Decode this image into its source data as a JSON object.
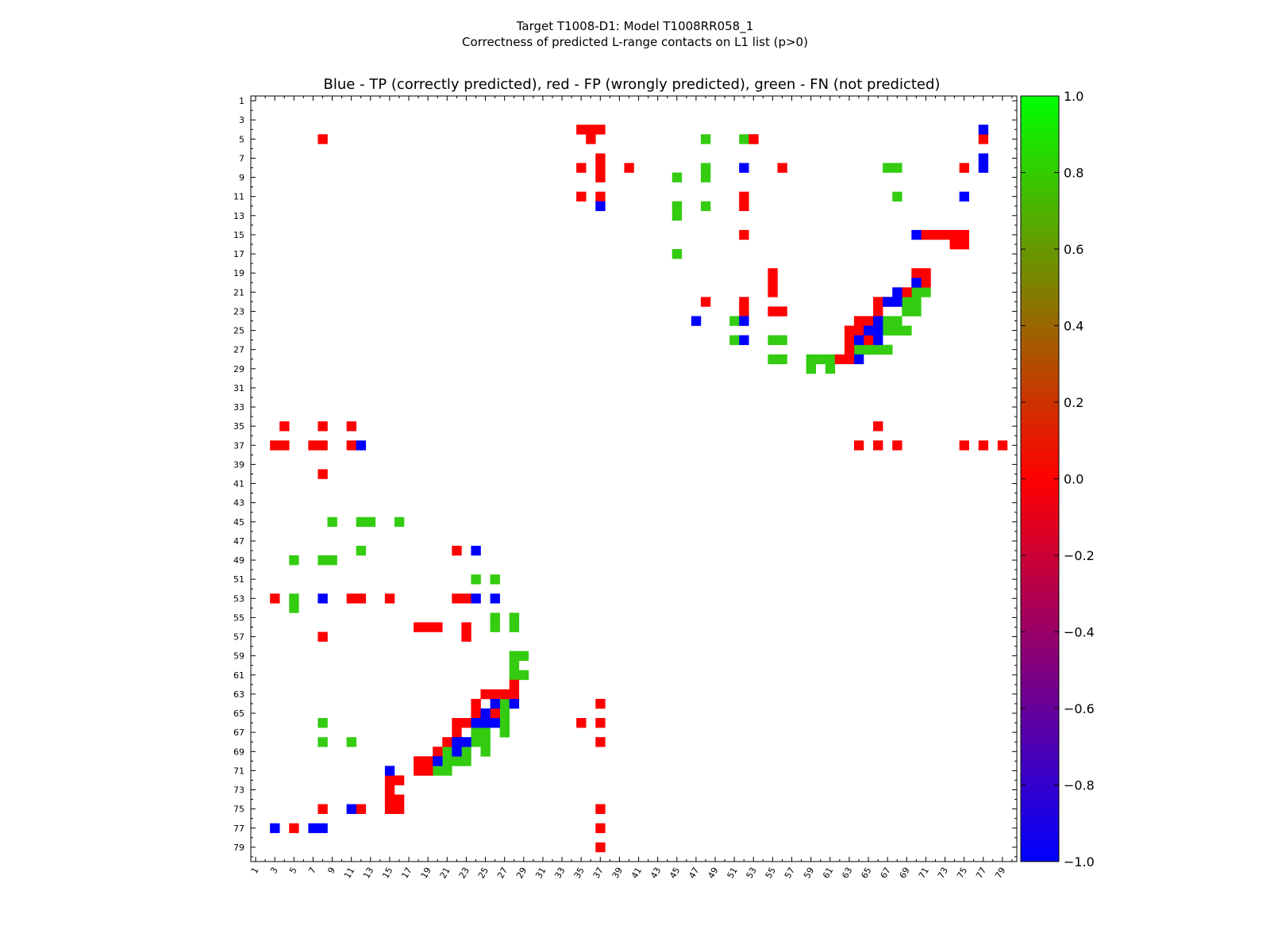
{
  "chart_data": {
    "type": "heatmap",
    "suptitle_line1": "Target T1008-D1: Model T1008RR058_1",
    "suptitle_line2": "Correctness of predicted L-range contacts on L1 list (p>0)",
    "title": "Blue - TP (correctly predicted), red - FP (wrongly predicted), green - FN (not predicted)",
    "xlabel": "",
    "ylabel": "",
    "n": 80,
    "xlim": [
      1,
      80
    ],
    "ylim": [
      1,
      80
    ],
    "tick_labels": [
      "1",
      "3",
      "5",
      "7",
      "9",
      "11",
      "13",
      "15",
      "17",
      "19",
      "21",
      "23",
      "25",
      "27",
      "29",
      "31",
      "33",
      "35",
      "37",
      "39",
      "41",
      "43",
      "45",
      "47",
      "49",
      "51",
      "53",
      "55",
      "57",
      "59",
      "61",
      "63",
      "65",
      "67",
      "69",
      "71",
      "73",
      "75",
      "77",
      "79"
    ],
    "colorbar": {
      "min": -1.0,
      "max": 1.0,
      "tick_labels": [
        "1.0",
        "0.8",
        "0.6",
        "0.4",
        "0.2",
        "0.0",
        "−0.2",
        "−0.4",
        "−0.6",
        "−0.8",
        "−1.0"
      ],
      "colors": [
        "#0000ff",
        "#ff0000",
        "#00ff00"
      ]
    },
    "category_colors": {
      "TP": "#0000ff",
      "FP": "#ff0000",
      "FN": "#33cc11"
    },
    "cells": {
      "FP": [
        [
          4,
          37
        ],
        [
          4,
          35
        ],
        [
          4,
          36
        ],
        [
          5,
          8
        ],
        [
          5,
          36
        ],
        [
          5,
          53
        ],
        [
          5,
          77
        ],
        [
          8,
          35
        ],
        [
          8,
          37
        ],
        [
          8,
          40
        ],
        [
          8,
          56
        ],
        [
          8,
          75
        ],
        [
          7,
          37
        ],
        [
          9,
          37
        ],
        [
          11,
          35
        ],
        [
          11,
          37
        ],
        [
          11,
          52
        ],
        [
          12,
          52
        ],
        [
          15,
          52
        ],
        [
          15,
          71
        ],
        [
          15,
          72
        ],
        [
          15,
          73
        ],
        [
          15,
          74
        ],
        [
          15,
          75
        ],
        [
          16,
          74
        ],
        [
          16,
          75
        ],
        [
          19,
          55
        ],
        [
          19,
          70
        ],
        [
          19,
          71
        ],
        [
          20,
          55
        ],
        [
          20,
          70
        ],
        [
          20,
          71
        ],
        [
          21,
          55
        ],
        [
          21,
          69
        ],
        [
          22,
          48
        ],
        [
          22,
          52
        ],
        [
          22,
          66
        ],
        [
          22,
          67
        ],
        [
          22,
          68
        ],
        [
          23,
          52
        ],
        [
          23,
          55
        ],
        [
          23,
          56
        ],
        [
          23,
          66
        ],
        [
          24,
          64
        ],
        [
          24,
          65
        ],
        [
          25,
          63
        ],
        [
          25,
          64
        ],
        [
          26,
          63
        ],
        [
          26,
          65
        ],
        [
          27,
          63
        ],
        [
          28,
          62
        ],
        [
          28,
          63
        ],
        [
          35,
          4
        ],
        [
          35,
          8
        ],
        [
          35,
          11
        ],
        [
          35,
          66
        ],
        [
          37,
          3
        ],
        [
          37,
          4
        ],
        [
          37,
          7
        ],
        [
          37,
          8
        ],
        [
          37,
          11
        ],
        [
          37,
          64
        ],
        [
          37,
          66
        ],
        [
          37,
          68
        ],
        [
          37,
          75
        ],
        [
          37,
          77
        ],
        [
          37,
          79
        ],
        [
          40,
          8
        ],
        [
          48,
          22
        ],
        [
          53,
          3
        ],
        [
          53,
          11
        ],
        [
          53,
          12
        ],
        [
          53,
          15
        ],
        [
          53,
          22
        ],
        [
          53,
          23
        ],
        [
          56,
          18
        ],
        [
          56,
          19
        ],
        [
          56,
          20
        ],
        [
          56,
          23
        ],
        [
          57,
          8
        ],
        [
          57,
          23
        ],
        [
          62,
          28
        ],
        [
          63,
          25
        ],
        [
          63,
          26
        ],
        [
          63,
          27
        ],
        [
          63,
          28
        ],
        [
          64,
          24
        ],
        [
          64,
          37
        ],
        [
          65,
          24
        ],
        [
          65,
          26
        ],
        [
          66,
          22
        ],
        [
          66,
          23
        ],
        [
          66,
          35
        ],
        [
          66,
          37
        ],
        [
          67,
          22
        ],
        [
          68,
          21
        ],
        [
          68,
          37
        ],
        [
          69,
          20
        ],
        [
          70,
          18
        ],
        [
          70,
          19
        ],
        [
          71,
          18
        ],
        [
          71,
          19
        ],
        [
          72,
          15
        ],
        [
          72,
          16
        ],
        [
          73,
          15
        ],
        [
          74,
          15
        ],
        [
          74,
          16
        ],
        [
          75,
          8
        ],
        [
          75,
          12
        ],
        [
          75,
          15
        ],
        [
          75,
          16
        ],
        [
          75,
          37
        ],
        [
          77,
          5
        ],
        [
          77,
          37
        ],
        [
          79,
          37
        ]
      ],
      "TP": [
        [
          4,
          77
        ],
        [
          7,
          77
        ],
        [
          8,
          52
        ],
        [
          8,
          77
        ],
        [
          11,
          75
        ],
        [
          12,
          37
        ],
        [
          15,
          70
        ],
        [
          20,
          70
        ],
        [
          21,
          68
        ],
        [
          22,
          67
        ],
        [
          22,
          68
        ],
        [
          24,
          47
        ],
        [
          24,
          52
        ],
        [
          24,
          66
        ],
        [
          25,
          65
        ],
        [
          25,
          66
        ],
        [
          26,
          52
        ],
        [
          26,
          64
        ],
        [
          26,
          66
        ],
        [
          28,
          64
        ],
        [
          37,
          12
        ],
        [
          48,
          24
        ],
        [
          53,
          8
        ],
        [
          53,
          24
        ],
        [
          53,
          26
        ],
        [
          64,
          26
        ],
        [
          64,
          28
        ],
        [
          65,
          25
        ],
        [
          66,
          24
        ],
        [
          66,
          25
        ],
        [
          66,
          26
        ],
        [
          68,
          22
        ],
        [
          68,
          23
        ],
        [
          69,
          22
        ],
        [
          71,
          15
        ],
        [
          70,
          20
        ],
        [
          77,
          3
        ],
        [
          77,
          7
        ],
        [
          77,
          8
        ],
        [
          75,
          11
        ]
      ],
      "FN": [
        [
          5,
          48
        ],
        [
          5,
          52
        ],
        [
          5,
          53
        ],
        [
          8,
          48
        ],
        [
          9,
          45
        ],
        [
          9,
          48
        ],
        [
          11,
          68
        ],
        [
          12,
          45
        ],
        [
          12,
          48
        ],
        [
          13,
          45
        ],
        [
          8,
          67
        ],
        [
          8,
          68
        ],
        [
          17,
          45
        ],
        [
          21,
          70
        ],
        [
          21,
          71
        ],
        [
          22,
          69
        ],
        [
          22,
          70
        ],
        [
          23,
          69
        ],
        [
          23,
          70
        ],
        [
          24,
          51
        ],
        [
          24,
          67
        ],
        [
          24,
          68
        ],
        [
          25,
          67
        ],
        [
          25,
          68
        ],
        [
          25,
          69
        ],
        [
          26,
          51
        ],
        [
          26,
          55
        ],
        [
          26,
          56
        ],
        [
          27,
          64
        ],
        [
          27,
          65
        ],
        [
          27,
          66
        ],
        [
          27,
          67
        ],
        [
          28,
          55
        ],
        [
          28,
          56
        ],
        [
          28,
          59
        ],
        [
          28,
          60
        ],
        [
          28,
          61
        ],
        [
          29,
          59
        ],
        [
          29,
          61
        ],
        [
          45,
          9
        ],
        [
          45,
          12
        ],
        [
          45,
          13
        ],
        [
          45,
          16
        ],
        [
          48,
          12
        ],
        [
          49,
          5
        ],
        [
          49,
          8
        ],
        [
          49,
          9
        ],
        [
          51,
          24
        ],
        [
          51,
          26
        ],
        [
          53,
          5
        ],
        [
          54,
          5
        ],
        [
          55,
          26
        ],
        [
          55,
          28
        ],
        [
          56,
          26
        ],
        [
          56,
          28
        ],
        [
          59,
          28
        ],
        [
          59,
          29
        ],
        [
          60,
          28
        ],
        [
          61,
          28
        ],
        [
          61,
          29
        ],
        [
          64,
          27
        ],
        [
          65,
          27
        ],
        [
          66,
          27
        ],
        [
          67,
          24
        ],
        [
          67,
          25
        ],
        [
          67,
          27
        ],
        [
          66,
          8
        ],
        [
          68,
          24
        ],
        [
          68,
          25
        ],
        [
          69,
          21
        ],
        [
          69,
          22
        ],
        [
          69,
          23
        ],
        [
          69,
          25
        ],
        [
          68,
          8
        ],
        [
          68,
          11
        ],
        [
          70,
          21
        ],
        [
          70,
          22
        ],
        [
          70,
          23
        ],
        [
          71,
          20
        ],
        [
          71,
          21
        ]
      ]
    }
  }
}
